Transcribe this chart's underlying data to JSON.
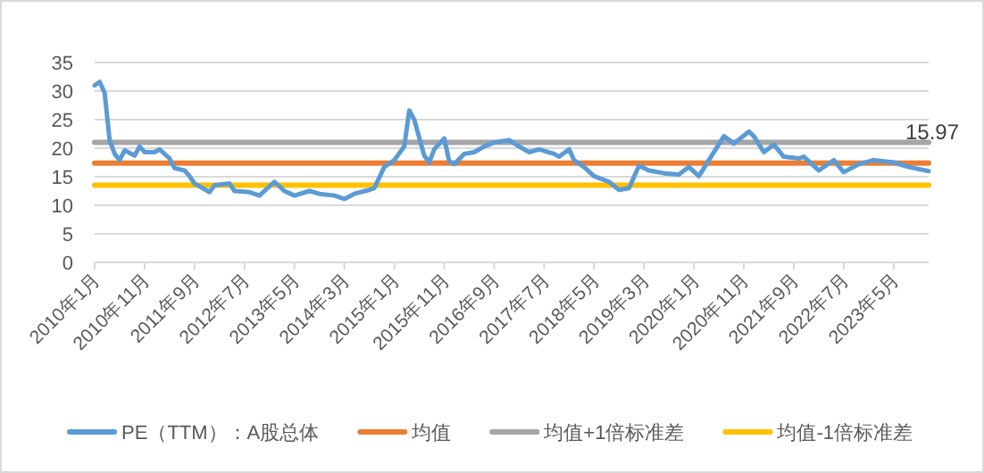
{
  "chart_data": {
    "type": "line",
    "xlim": [
      "2010-01",
      "2023-12"
    ],
    "ylim": [
      0,
      35
    ],
    "yticks": [
      0,
      5,
      10,
      15,
      20,
      25,
      30,
      35
    ],
    "grid": "y",
    "legend": "bottom",
    "line_style": "solid",
    "marker": "none",
    "xticks": [
      {
        "value": "2010-01",
        "label": "2010年1月"
      },
      {
        "value": "2010-11",
        "label": "2010年11月"
      },
      {
        "value": "2011-09",
        "label": "2011年9月"
      },
      {
        "value": "2012-07",
        "label": "2012年7月"
      },
      {
        "value": "2013-05",
        "label": "2013年5月"
      },
      {
        "value": "2014-03",
        "label": "2014年3月"
      },
      {
        "value": "2015-01",
        "label": "2015年1月"
      },
      {
        "value": "2015-11",
        "label": "2015年11月"
      },
      {
        "value": "2016-09",
        "label": "2016年9月"
      },
      {
        "value": "2017-07",
        "label": "2017年7月"
      },
      {
        "value": "2018-05",
        "label": "2018年5月"
      },
      {
        "value": "2019-03",
        "label": "2019年3月"
      },
      {
        "value": "2020-01",
        "label": "2020年1月"
      },
      {
        "value": "2020-11",
        "label": "2020年11月"
      },
      {
        "value": "2021-09",
        "label": "2021年9月"
      },
      {
        "value": "2022-07",
        "label": "2022年7月"
      },
      {
        "value": "2023-05",
        "label": "2023年5月"
      }
    ],
    "annotations": [
      {
        "text": "15.97",
        "x": "2023-12",
        "y": 15.97
      }
    ],
    "series": [
      {
        "name": "PE（TTM）：A股总体",
        "color": "#5b9bd5",
        "x": [
          "2010-01",
          "2010-02",
          "2010-03",
          "2010-04",
          "2010-05",
          "2010-06",
          "2010-07",
          "2010-09",
          "2010-10",
          "2010-11",
          "2011-01",
          "2011-02",
          "2011-04",
          "2011-05",
          "2011-07",
          "2011-08",
          "2011-09",
          "2011-12",
          "2012-01",
          "2012-04",
          "2012-05",
          "2012-08",
          "2012-10",
          "2013-01",
          "2013-03",
          "2013-05",
          "2013-08",
          "2013-10",
          "2014-01",
          "2014-03",
          "2014-05",
          "2014-08",
          "2014-09",
          "2014-11",
          "2015-01",
          "2015-03",
          "2015-04",
          "2015-05",
          "2015-07",
          "2015-08",
          "2015-09",
          "2015-11",
          "2015-12",
          "2016-01",
          "2016-03",
          "2016-05",
          "2016-07",
          "2016-09",
          "2016-12",
          "2017-02",
          "2017-04",
          "2017-06",
          "2017-09",
          "2017-10",
          "2017-12",
          "2018-01",
          "2018-03",
          "2018-05",
          "2018-08",
          "2018-10",
          "2018-12",
          "2019-02",
          "2019-04",
          "2019-07",
          "2019-10",
          "2019-12",
          "2020-02",
          "2020-04",
          "2020-07",
          "2020-09",
          "2020-12",
          "2021-01",
          "2021-03",
          "2021-05",
          "2021-07",
          "2021-10",
          "2021-11",
          "2022-02",
          "2022-05",
          "2022-07",
          "2022-10",
          "2023-01",
          "2023-05",
          "2023-08",
          "2023-12"
        ],
        "values": [
          31,
          31.6,
          29.7,
          21.4,
          19,
          17.9,
          19.6,
          18.7,
          20.3,
          19.3,
          19.3,
          19.8,
          18.2,
          16.5,
          16.1,
          15.1,
          13.8,
          12.3,
          13.5,
          13.8,
          12.5,
          12.3,
          11.7,
          14.1,
          12.5,
          11.7,
          12.5,
          12,
          11.7,
          11.1,
          12,
          12.7,
          13,
          16.7,
          17.9,
          20.3,
          26.6,
          25,
          18.7,
          17.5,
          19.8,
          21.7,
          17.7,
          17.2,
          19,
          19.3,
          20.3,
          21,
          21.4,
          20.3,
          19.3,
          19.8,
          19,
          18.5,
          19.8,
          17.9,
          16.7,
          15.1,
          14.1,
          12.7,
          13,
          16.9,
          16.1,
          15.6,
          15.4,
          16.7,
          15.1,
          17.9,
          22.1,
          20.8,
          22.9,
          22.1,
          19.3,
          20.6,
          18.5,
          18.2,
          18.5,
          16.1,
          17.9,
          15.8,
          17.2,
          17.9,
          17.5,
          16.7,
          15.97
        ]
      },
      {
        "name": "均值",
        "color": "#ed7d31",
        "x": [
          "2010-01",
          "2023-12"
        ],
        "values": [
          17.4,
          17.4
        ]
      },
      {
        "name": "均值+1倍标准差",
        "color": "#a5a5a5",
        "x": [
          "2010-01",
          "2023-12"
        ],
        "values": [
          21,
          21
        ]
      },
      {
        "name": "均值-1倍标准差",
        "color": "#ffc000",
        "x": [
          "2010-01",
          "2023-12"
        ],
        "values": [
          13.5,
          13.5
        ]
      }
    ]
  }
}
